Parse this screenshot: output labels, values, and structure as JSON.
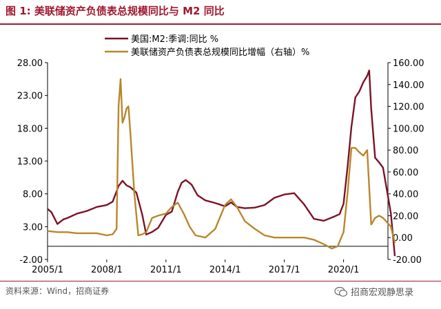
{
  "title": "图 1:  美联储资产负债表总规模同比与 M2 同比",
  "source": "资料来源：Wind，招商证券",
  "watermark": "招商宏观静思录",
  "colors": {
    "m2": "#7b1124",
    "fed": "#b8862b",
    "accent": "#a0172e",
    "axis": "#000000"
  },
  "chart_data": {
    "type": "line",
    "legend_position": "top-center",
    "grid": false,
    "x_ticks": [
      "2005/1",
      "2008/1",
      "2011/1",
      "2014/1",
      "2017/1",
      "2020/1"
    ],
    "xlim": [
      "2005/1",
      "2022/4"
    ],
    "y_left": {
      "lim": [
        -2,
        28
      ],
      "ticks": [
        "28.00",
        "23.00",
        "18.00",
        "13.00",
        "8.00",
        "3.00",
        "-2.00"
      ]
    },
    "y_right": {
      "lim": [
        -20,
        160
      ],
      "ticks": [
        "160.00",
        "140.00",
        "120.00",
        "100.00",
        "80.00",
        "60.00",
        "40.00",
        "20.00",
        "0.00",
        "-20.00"
      ]
    },
    "series": [
      {
        "name": "美国:M2:季调:同比 %",
        "axis": "left",
        "color": "#7b1124",
        "x": [
          2005.0,
          2005.2,
          2005.5,
          2005.8,
          2006.0,
          2006.5,
          2007.0,
          2007.5,
          2008.0,
          2008.3,
          2008.6,
          2008.8,
          2009.0,
          2009.2,
          2009.5,
          2009.8,
          2010.0,
          2010.3,
          2010.6,
          2011.0,
          2011.3,
          2011.6,
          2011.8,
          2012.0,
          2012.3,
          2012.6,
          2013.0,
          2013.5,
          2014.0,
          2014.3,
          2014.6,
          2015.0,
          2015.5,
          2016.0,
          2016.5,
          2017.0,
          2017.5,
          2018.0,
          2018.5,
          2019.0,
          2019.5,
          2019.8,
          2020.0,
          2020.2,
          2020.4,
          2020.6,
          2020.8,
          2021.0,
          2021.2,
          2021.3,
          2021.4,
          2021.6,
          2021.8,
          2022.0,
          2022.2,
          2022.4,
          2022.6
        ],
        "y": [
          5.7,
          5.2,
          3.4,
          4.1,
          4.3,
          5.0,
          5.4,
          6.0,
          6.3,
          6.8,
          9.2,
          10.0,
          9.3,
          9.0,
          8.2,
          4.8,
          1.8,
          2.2,
          2.8,
          4.8,
          5.3,
          8.3,
          9.7,
          10.1,
          9.4,
          7.8,
          7.0,
          6.6,
          6.1,
          6.7,
          6.0,
          5.8,
          5.9,
          6.3,
          7.4,
          7.9,
          8.1,
          6.4,
          4.2,
          3.9,
          4.5,
          4.9,
          6.5,
          12.0,
          18.2,
          22.7,
          23.6,
          25.0,
          26.0,
          26.8,
          21.0,
          13.5,
          12.8,
          12.0,
          8.5,
          5.0,
          -1.5
        ]
      },
      {
        "name": "美联储资产负债表总规模同比增幅（右轴）%",
        "axis": "right",
        "color": "#b8862b",
        "x": [
          2005.0,
          2005.5,
          2006.0,
          2006.5,
          2007.0,
          2007.5,
          2008.0,
          2008.3,
          2008.5,
          2008.6,
          2008.7,
          2008.8,
          2008.9,
          2009.0,
          2009.1,
          2009.2,
          2009.4,
          2009.6,
          2009.8,
          2010.0,
          2010.3,
          2010.6,
          2011.0,
          2011.3,
          2011.6,
          2011.9,
          2012.2,
          2012.5,
          2013.0,
          2013.5,
          2014.0,
          2014.3,
          2014.6,
          2015.0,
          2015.5,
          2016.0,
          2016.5,
          2017.0,
          2017.5,
          2018.0,
          2018.5,
          2019.0,
          2019.4,
          2019.7,
          2020.0,
          2020.2,
          2020.4,
          2020.6,
          2020.8,
          2021.0,
          2021.2,
          2021.4,
          2021.6,
          2021.8,
          2022.0,
          2022.2,
          2022.4,
          2022.6
        ],
        "y": [
          6,
          5,
          5,
          4,
          4,
          4,
          2,
          3,
          8,
          120,
          145,
          105,
          110,
          118,
          120,
          95,
          40,
          2,
          3,
          5,
          18,
          20,
          22,
          28,
          32,
          22,
          10,
          2,
          0,
          8,
          30,
          35,
          28,
          15,
          8,
          2,
          0,
          0,
          0,
          0,
          -2,
          -6,
          -10,
          -8,
          5,
          40,
          82,
          82,
          78,
          75,
          80,
          12,
          18,
          20,
          18,
          14,
          10,
          -5
        ]
      }
    ]
  }
}
